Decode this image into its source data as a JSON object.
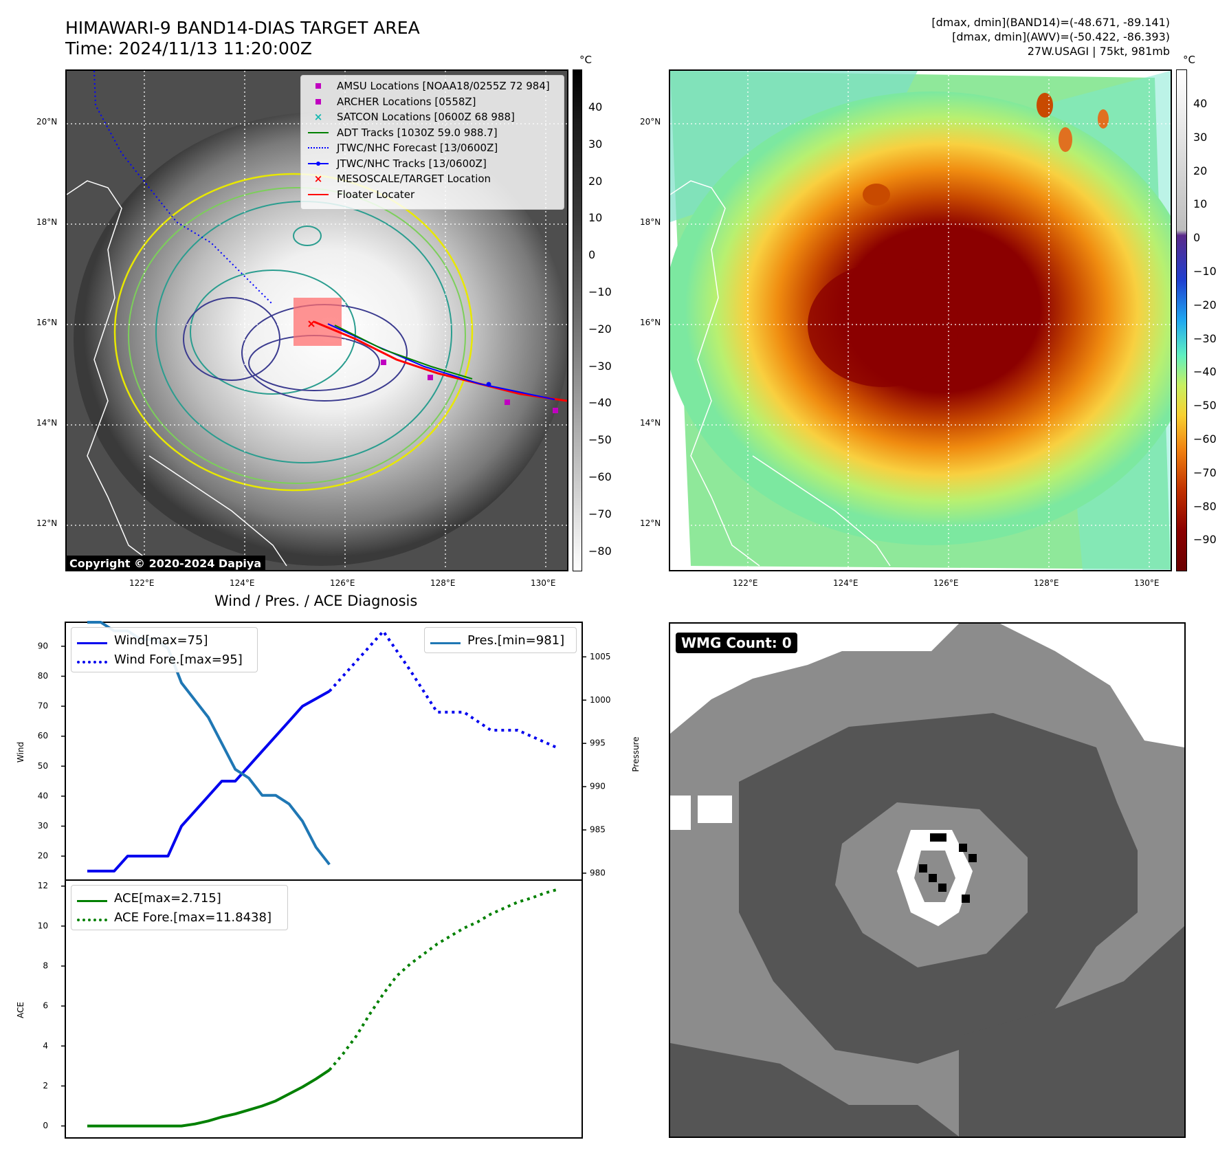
{
  "header": {
    "title": "HIMAWARI-9 BAND14-DIAS TARGET AREA",
    "time": "Time: 2024/11/13 11:20:00Z",
    "band14_stats": "[dmax, dmin](BAND14)=(-48.671, -89.141)",
    "awv_stats": "[dmax, dmin](AWV)=(-50.422, -86.393)",
    "storm_info": "27W.USAGI | 75kt, 981mb"
  },
  "map_axes": {
    "lat_labels": [
      "20°N",
      "18°N",
      "16°N",
      "14°N",
      "12°N"
    ],
    "lon_labels": [
      "122°E",
      "124°E",
      "126°E",
      "128°E",
      "130°E"
    ]
  },
  "colorbar_gray": {
    "unit": "°C",
    "labels": [
      "40",
      "30",
      "20",
      "10",
      "0",
      "−10",
      "−20",
      "−30",
      "−40",
      "−50",
      "−60",
      "−70",
      "−80"
    ]
  },
  "colorbar_color": {
    "unit": "°C",
    "labels": [
      "40",
      "30",
      "20",
      "10",
      "0",
      "−10",
      "−20",
      "−30",
      "−40",
      "−50",
      "−60",
      "−70",
      "−80",
      "−90"
    ]
  },
  "map_legend": [
    {
      "label": "AMSU Locations [NOAA18/0255Z 72 984]",
      "symbol": "square",
      "color": "#c000c0"
    },
    {
      "label": "ARCHER Locations [0558Z]",
      "symbol": "square",
      "color": "#c000c0"
    },
    {
      "label": "SATCON Locations [0600Z 68 988]",
      "symbol": "x",
      "color": "#14b8b0"
    },
    {
      "label": "ADT Tracks [1030Z 59.0 988.7]",
      "symbol": "line",
      "color": "#008000"
    },
    {
      "label": "JTWC/NHC Forecast [13/0600Z]",
      "symbol": "dotted",
      "color": "#0000ff"
    },
    {
      "label": "JTWC/NHC Tracks [13/0600Z]",
      "symbol": "dotline",
      "color": "#0000ff"
    },
    {
      "label": "MESOSCALE/TARGET Location",
      "symbol": "x",
      "color": "#ff0000"
    },
    {
      "label": "Floater Locater",
      "symbol": "line",
      "color": "#ff0000"
    }
  ],
  "copyright": "Copyright © 2020-2024 Dapiya",
  "wmg": {
    "label": "WMG Count: 0"
  },
  "chart_data": [
    {
      "type": "line",
      "title": "Wind / Pres. / ACE Diagnosis",
      "ylabel": "Wind",
      "y2label": "Pressure",
      "ylim": [
        12,
        98
      ],
      "y2lim": [
        979.2,
        1009
      ],
      "yticks": [
        "20",
        "30",
        "40",
        "50",
        "60",
        "70",
        "80",
        "90"
      ],
      "y2ticks": [
        "980",
        "985",
        "990",
        "995",
        "1000",
        "1005"
      ],
      "x": [
        0,
        1,
        2,
        3,
        4,
        5,
        6,
        7,
        8,
        9,
        10,
        11,
        12,
        13,
        14,
        15,
        16,
        17,
        18,
        19,
        20,
        21,
        22,
        23,
        24,
        25,
        26,
        27,
        28,
        29,
        30,
        31,
        32,
        33,
        34,
        35
      ],
      "series": [
        {
          "name": "Wind[max=75]",
          "axis": "left",
          "style": "solid",
          "color": "#0000ee",
          "x": [
            0,
            2,
            3,
            6,
            7,
            9,
            10,
            11,
            12,
            13,
            15,
            16,
            17,
            18
          ],
          "values": [
            15,
            15,
            20,
            20,
            30,
            40,
            45,
            45,
            50,
            55,
            65,
            70,
            72.5,
            75
          ]
        },
        {
          "name": "Wind Fore.[max=95]",
          "axis": "left",
          "style": "dotted",
          "color": "#0000ee",
          "x": [
            18,
            20,
            22,
            24,
            26,
            28,
            30,
            32,
            34,
            35
          ],
          "values": [
            75,
            85,
            95,
            82,
            68,
            68,
            62,
            62,
            58,
            56
          ]
        },
        {
          "name": "Pres.[min=981]",
          "axis": "right",
          "style": "solid",
          "color": "#1f77b4",
          "x": [
            0,
            1,
            2,
            3,
            4,
            5,
            6,
            7,
            8,
            9,
            10,
            11,
            12,
            13,
            14,
            15,
            16,
            17,
            18
          ],
          "values": [
            1009,
            1009,
            1008,
            1008,
            1007,
            1007,
            1006,
            1002,
            1000,
            998,
            995,
            992,
            991,
            989,
            989,
            988,
            986,
            983,
            981
          ]
        }
      ],
      "legend": [
        "Wind[max=75]",
        "Wind Fore.[max=95]",
        "Pres.[min=981]"
      ]
    },
    {
      "type": "line",
      "ylabel": "ACE",
      "ylim": [
        -0.6,
        12.3
      ],
      "yticks": [
        "0",
        "2",
        "4",
        "6",
        "8",
        "10",
        "12"
      ],
      "series": [
        {
          "name": "ACE[max=2.715]",
          "style": "solid",
          "color": "#008000",
          "x": [
            0,
            2,
            4,
            6,
            7,
            8,
            9,
            10,
            11,
            12,
            13,
            14,
            15,
            16,
            17,
            18
          ],
          "values": [
            0,
            0,
            0,
            0,
            0,
            0.1,
            0.25,
            0.45,
            0.6,
            0.8,
            1.0,
            1.25,
            1.6,
            1.95,
            2.35,
            2.8
          ]
        },
        {
          "name": "ACE Fore.[max=11.8438]",
          "style": "dotted",
          "color": "#008000",
          "x": [
            18,
            19,
            20,
            21,
            22,
            23,
            24,
            25,
            26,
            27,
            28,
            29,
            30,
            31,
            32,
            33,
            34,
            35
          ],
          "values": [
            2.8,
            3.6,
            4.5,
            5.6,
            6.6,
            7.5,
            8.1,
            8.6,
            9.1,
            9.5,
            9.9,
            10.2,
            10.6,
            10.9,
            11.2,
            11.4,
            11.65,
            11.84
          ]
        }
      ],
      "legend": [
        "ACE[max=2.715]",
        "ACE Fore.[max=11.8438]"
      ]
    }
  ]
}
